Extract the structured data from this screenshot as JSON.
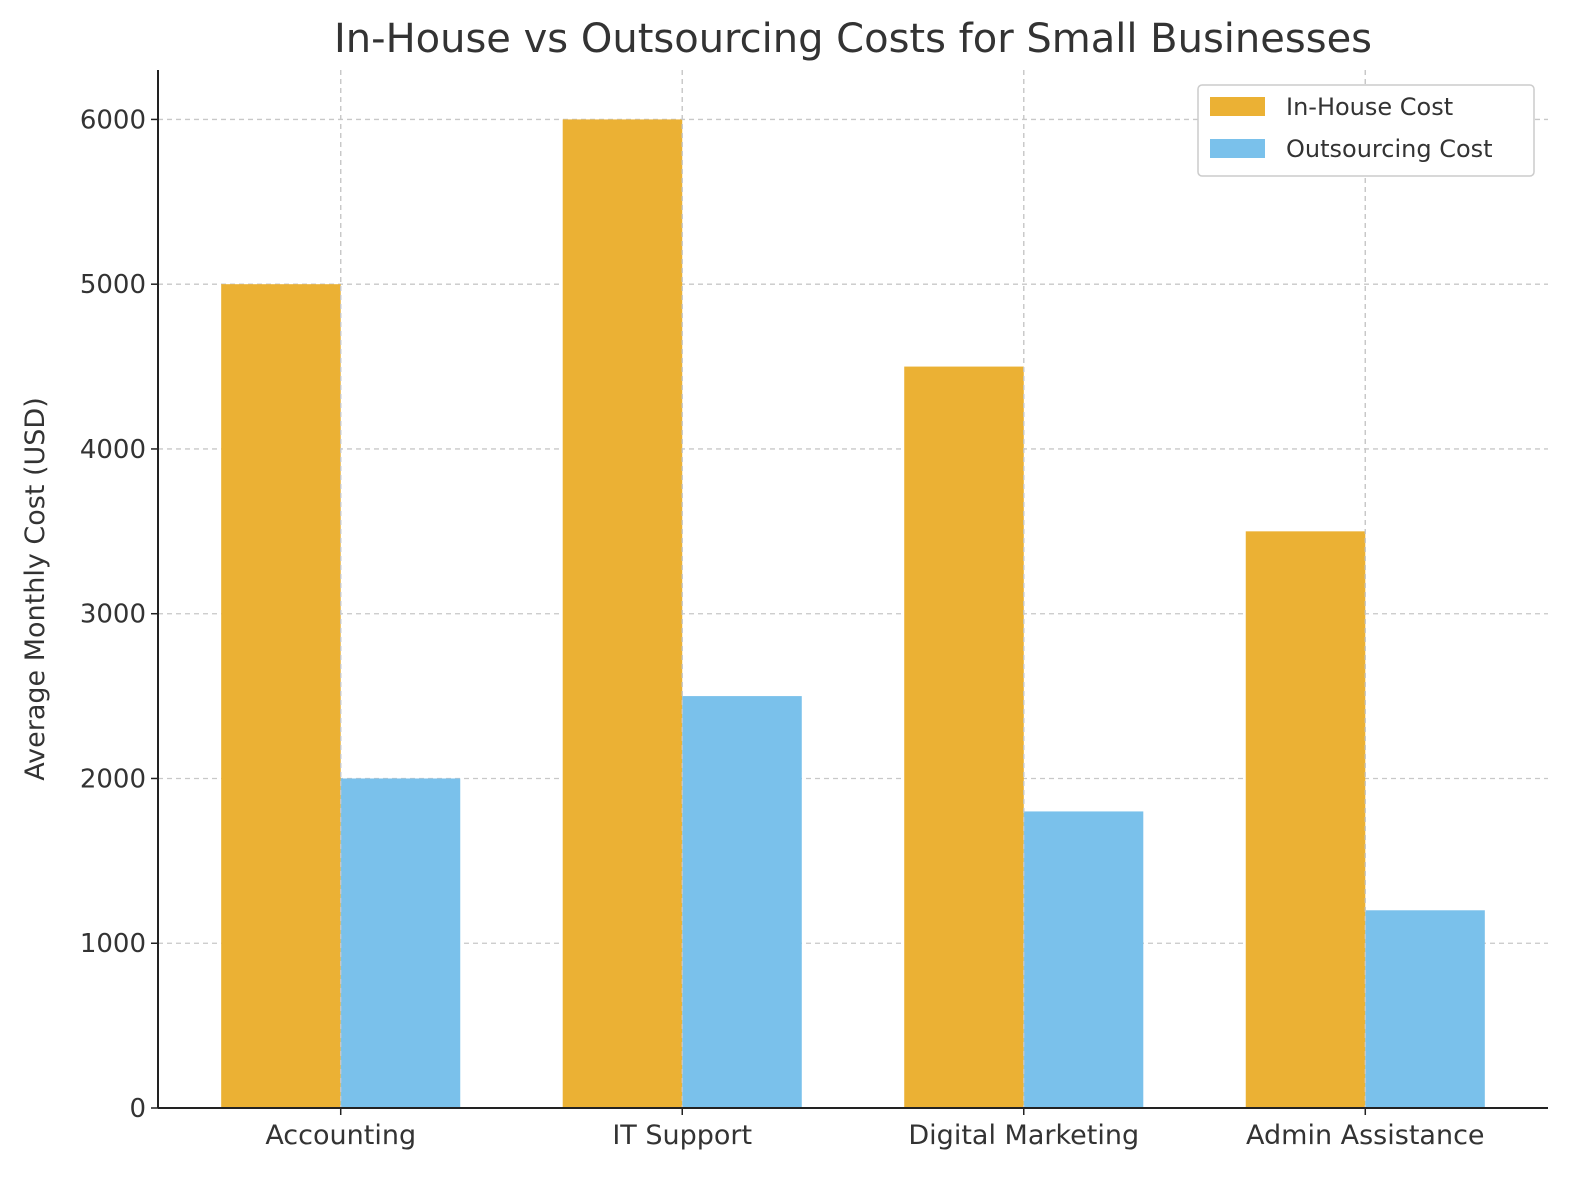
{
  "chart_data": {
    "type": "bar",
    "title": "In-House vs Outsourcing Costs for Small Businesses",
    "xlabel": "",
    "ylabel": "Average Monthly Cost (USD)",
    "categories": [
      "Accounting",
      "IT Support",
      "Digital Marketing",
      "Admin Assistance"
    ],
    "series": [
      {
        "name": "In-House Cost",
        "values": [
          5000,
          6000,
          4500,
          3500
        ],
        "color": "#EBB134"
      },
      {
        "name": "Outsourcing Cost",
        "values": [
          2000,
          2500,
          1800,
          1200
        ],
        "color": "#7AC1EB"
      }
    ],
    "ylim": [
      0,
      6300
    ],
    "yticks": [
      0,
      1000,
      2000,
      3000,
      4000,
      5000,
      6000
    ],
    "grid": true,
    "legend": "top-right"
  }
}
